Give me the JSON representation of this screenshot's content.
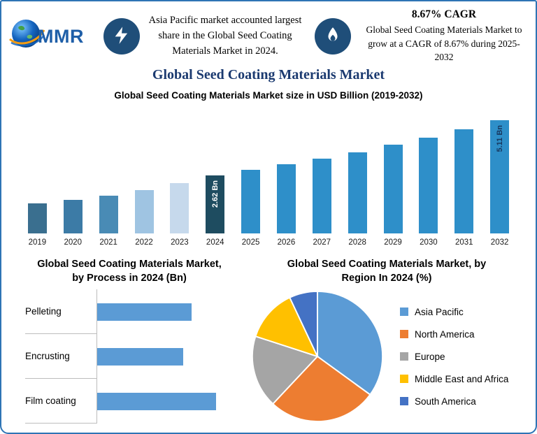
{
  "page": {
    "border_color": "#2e74b5",
    "accent_navy": "#1f4e79"
  },
  "header": {
    "logo_text": "MMR",
    "highlight1": "Asia Pacific market accounted largest share in the Global Seed Coating Materials Market in 2024.",
    "cagr_heading": "8.67% CAGR",
    "highlight2": "Global Seed Coating Materials Market to grow at a CAGR of 8.67% during 2025-2032",
    "title": "Global Seed Coating Materials Market"
  },
  "chart_data": [
    {
      "type": "bar",
      "title": "Global Seed Coating Materials Market size in USD Billion (2019-2032)",
      "ylabel": "USD Billion",
      "ylim": [
        0,
        5.6
      ],
      "grid": false,
      "categories": [
        "2019",
        "2020",
        "2021",
        "2022",
        "2023",
        "2024",
        "2025",
        "2026",
        "2027",
        "2028",
        "2029",
        "2030",
        "2031",
        "2032"
      ],
      "values": [
        1.35,
        1.5,
        1.7,
        1.95,
        2.25,
        2.62,
        2.85,
        3.1,
        3.37,
        3.66,
        3.98,
        4.32,
        4.7,
        5.11
      ],
      "bar_colors": [
        "#3a6f8f",
        "#3c7ba6",
        "#498bb5",
        "#9fc4e2",
        "#c6d9ec",
        "#1e4c60",
        "#2e8fc9",
        "#2e8fc9",
        "#2e8fc9",
        "#2e8fc9",
        "#2e8fc9",
        "#2e8fc9",
        "#2e8fc9",
        "#2e8fc9"
      ],
      "annotations": [
        {
          "index": 5,
          "text": "2.62 Bn",
          "color": "#ffffff"
        },
        {
          "index": 13,
          "text": "5.11 Bn",
          "color": "#17375e"
        }
      ]
    },
    {
      "type": "bar",
      "orientation": "horizontal",
      "title": "Global Seed Coating Materials Market, by Process in 2024 (Bn)",
      "categories": [
        "Pelleting",
        "Encrusting",
        "Film coating"
      ],
      "values": [
        0.83,
        0.75,
        1.04
      ],
      "xlim": [
        0,
        1.2
      ],
      "bar_color": "#5b9bd5",
      "grid": false
    },
    {
      "type": "pie",
      "title": "Global Seed Coating Materials Market, by Region In 2024 (%)",
      "labels": [
        "Asia Pacific",
        "North America",
        "Europe",
        "Middle East and Africa",
        "South America"
      ],
      "values": [
        35,
        27,
        18,
        13,
        7
      ],
      "colors": [
        "#5b9bd5",
        "#ed7d31",
        "#a5a5a5",
        "#ffc000",
        "#4472c4"
      ],
      "legend_position": "right"
    }
  ]
}
